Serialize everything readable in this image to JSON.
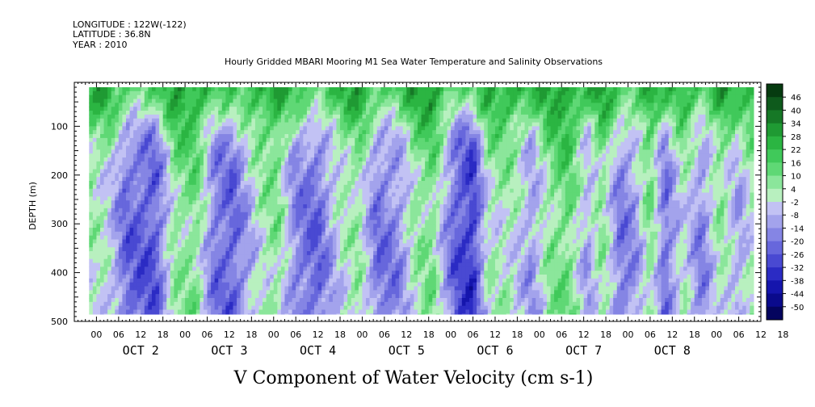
{
  "header": {
    "longitude": "LONGITUDE : 122W(-122)",
    "latitude": "LATITUDE : 36.8N",
    "year": "YEAR : 2010"
  },
  "chart_data": {
    "type": "heatmap",
    "title": "Hourly Gridded MBARI Mooring M1 Sea Water Temperature and Salinity Observations",
    "xlabel": "V Component of Water Velocity (cm s-1)",
    "ylabel": "DEPTH (m)",
    "y_axis": {
      "ticks": [
        100,
        200,
        300,
        400,
        500
      ],
      "range": [
        500,
        10
      ],
      "inverted": true
    },
    "x_axis": {
      "hour_ticks": [
        "00",
        "06",
        "12",
        "18",
        "00",
        "06",
        "12",
        "18",
        "00",
        "06",
        "12",
        "18",
        "00",
        "06",
        "12",
        "18",
        "00",
        "06",
        "12",
        "18",
        "00",
        "06",
        "12",
        "18",
        "00",
        "06",
        "12",
        "18",
        "00",
        "06",
        "12",
        "18"
      ],
      "day_labels": [
        "OCT 2",
        "OCT 3",
        "OCT 4",
        "OCT 5",
        "OCT 6",
        "OCT 7",
        "OCT 8"
      ],
      "range_hours": [
        0,
        186
      ],
      "data_start_hour": 4,
      "data_end_hour": 184
    },
    "data_depth_range": [
      20,
      485
    ],
    "colorbar": {
      "labels": [
        "46",
        "40",
        "34",
        "28",
        "22",
        "16",
        "10",
        "4",
        "-2",
        "-8",
        "-14",
        "-20",
        "-26",
        "-32",
        "-38",
        "-44",
        "-50"
      ],
      "min": -50,
      "max": 50,
      "colors": [
        "#063b10",
        "#0e5a1c",
        "#167826",
        "#1f9a33",
        "#2bb542",
        "#40c95a",
        "#5fd875",
        "#8be69b",
        "#b8f0bf",
        "#c2c2f4",
        "#a3a3ec",
        "#8585e4",
        "#6767dc",
        "#4949d2",
        "#2b2bc4",
        "#1515ad",
        "#0a0a8c",
        "#04045e"
      ]
    },
    "depth_profile": [
      {
        "depth": 20,
        "offset": 24
      },
      {
        "depth": 60,
        "offset": 18
      },
      {
        "depth": 100,
        "offset": 9
      },
      {
        "depth": 150,
        "offset": 3
      },
      {
        "depth": 200,
        "offset": 0
      },
      {
        "depth": 300,
        "offset": -2
      },
      {
        "depth": 400,
        "offset": -3
      },
      {
        "depth": 485,
        "offset": -2
      }
    ],
    "time_anomaly": [
      {
        "hour": 4,
        "v": 6
      },
      {
        "hour": 9,
        "v": 2
      },
      {
        "hour": 14,
        "v": -16
      },
      {
        "hour": 22,
        "v": -20
      },
      {
        "hour": 27,
        "v": 8
      },
      {
        "hour": 33,
        "v": 12
      },
      {
        "hour": 38,
        "v": -14
      },
      {
        "hour": 43,
        "v": -18
      },
      {
        "hour": 50,
        "v": 4
      },
      {
        "hour": 55,
        "v": 10
      },
      {
        "hour": 60,
        "v": -12
      },
      {
        "hour": 66,
        "v": -17
      },
      {
        "hour": 72,
        "v": 2
      },
      {
        "hour": 77,
        "v": 8
      },
      {
        "hour": 82,
        "v": -14
      },
      {
        "hour": 88,
        "v": -10
      },
      {
        "hour": 92,
        "v": 6
      },
      {
        "hour": 97,
        "v": 12
      },
      {
        "hour": 103,
        "v": -18
      },
      {
        "hour": 108,
        "v": -26
      },
      {
        "hour": 112,
        "v": 4
      },
      {
        "hour": 118,
        "v": 6
      },
      {
        "hour": 124,
        "v": -8
      },
      {
        "hour": 129,
        "v": 10
      },
      {
        "hour": 134,
        "v": 14
      },
      {
        "hour": 139,
        "v": -6
      },
      {
        "hour": 143,
        "v": 10
      },
      {
        "hour": 148,
        "v": -14
      },
      {
        "hour": 152,
        "v": -8
      },
      {
        "hour": 156,
        "v": 12
      },
      {
        "hour": 160,
        "v": -16
      },
      {
        "hour": 165,
        "v": 4
      },
      {
        "hour": 170,
        "v": -12
      },
      {
        "hour": 175,
        "v": 8
      },
      {
        "hour": 180,
        "v": -6
      },
      {
        "hour": 184,
        "v": 6
      }
    ]
  }
}
